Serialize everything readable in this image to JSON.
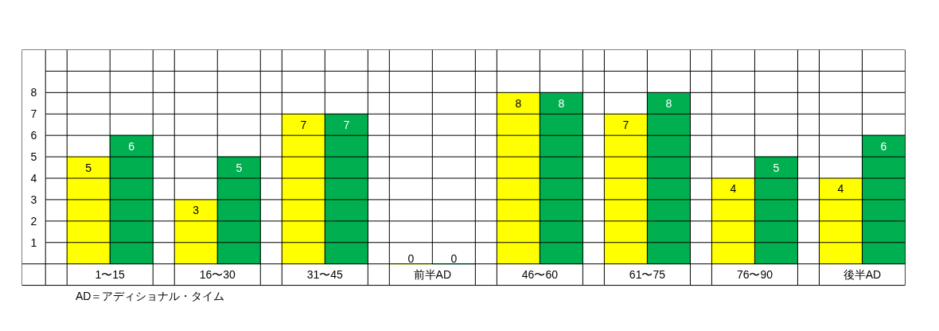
{
  "chart_data": {
    "type": "bar",
    "categories": [
      "1〜15",
      "16〜30",
      "31〜45",
      "前半AD",
      "46〜60",
      "61〜75",
      "76〜90",
      "後半AD"
    ],
    "series": [
      {
        "color": "#ffff00",
        "values": [
          5,
          3,
          7,
          0,
          8,
          7,
          4,
          4
        ]
      },
      {
        "color": "#00b050",
        "values": [
          6,
          5,
          7,
          0,
          8,
          8,
          5,
          6
        ]
      }
    ],
    "ylim": [
      0,
      10
    ],
    "yticks": [
      1,
      2,
      3,
      4,
      5,
      6,
      7,
      8
    ],
    "grid": true,
    "data_labels": true,
    "annotations": [
      "AD＝アディショナル・タイム"
    ]
  }
}
